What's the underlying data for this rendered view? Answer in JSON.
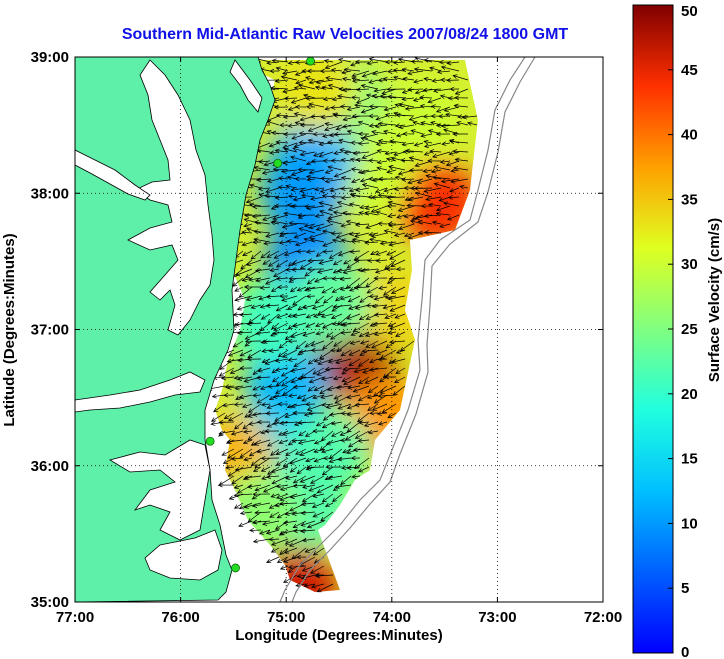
{
  "chart_data": {
    "type": "heatmap",
    "title": "Southern Mid-Atlantic Raw Velocities 2007/08/24 1800 GMT",
    "xlabel": "Longitude (Degrees:Minutes)",
    "ylabel": "Latitude (Degrees:Minutes)",
    "colorbar_label": "Surface Velocity (cm/s)",
    "x_ticks": [
      "77:00",
      "76:00",
      "75:00",
      "74:00",
      "73:00",
      "72:00"
    ],
    "y_ticks": [
      "39:00",
      "38:00",
      "37:00",
      "36:00",
      "35:00"
    ],
    "colorbar_ticks": [
      "0",
      "5",
      "10",
      "15",
      "20",
      "25",
      "30",
      "35",
      "40",
      "45",
      "50"
    ],
    "xlim": [
      -77,
      -72
    ],
    "ylim": [
      35,
      39
    ],
    "clim": [
      0,
      50
    ],
    "grid": true,
    "colormap": "jet",
    "land_color": "#5ef0a8",
    "title_color": "#1010e8",
    "stations": [
      {
        "lon": -74.77,
        "lat": 38.97
      },
      {
        "lon": -75.08,
        "lat": 38.22
      },
      {
        "lon": -75.72,
        "lat": 36.18
      },
      {
        "lon": -75.48,
        "lat": 35.25
      }
    ],
    "velocity_blobs": [
      {
        "lon": -74.35,
        "lat": 36.78,
        "value": 48
      },
      {
        "lon": -73.55,
        "lat": 37.92,
        "value": 44
      },
      {
        "lon": -74.9,
        "lat": 35.1,
        "value": 46
      },
      {
        "lon": -74.05,
        "lat": 36.35,
        "value": 38
      },
      {
        "lon": -73.95,
        "lat": 37.15,
        "value": 34
      },
      {
        "lon": -73.75,
        "lat": 38.55,
        "value": 30
      },
      {
        "lon": -74.2,
        "lat": 38.15,
        "value": 30
      },
      {
        "lon": -74.5,
        "lat": 38.7,
        "value": 24
      },
      {
        "lon": -74.75,
        "lat": 38.25,
        "value": 12
      },
      {
        "lon": -74.85,
        "lat": 38.0,
        "value": 10
      },
      {
        "lon": -74.8,
        "lat": 37.5,
        "value": 9
      },
      {
        "lon": -75.0,
        "lat": 36.6,
        "value": 12
      },
      {
        "lon": -75.2,
        "lat": 36.1,
        "value": 15
      },
      {
        "lon": -75.5,
        "lat": 36.05,
        "value": 36
      },
      {
        "lon": -74.6,
        "lat": 36.1,
        "value": 22
      },
      {
        "lon": -74.8,
        "lat": 35.7,
        "value": 22
      },
      {
        "lon": -75.25,
        "lat": 35.65,
        "value": 26
      },
      {
        "lon": -74.7,
        "lat": 38.75,
        "value": 33
      },
      {
        "lon": -74.6,
        "lat": 37.2,
        "value": 23
      },
      {
        "lon": -75.15,
        "lat": 37.05,
        "value": 21
      }
    ]
  }
}
